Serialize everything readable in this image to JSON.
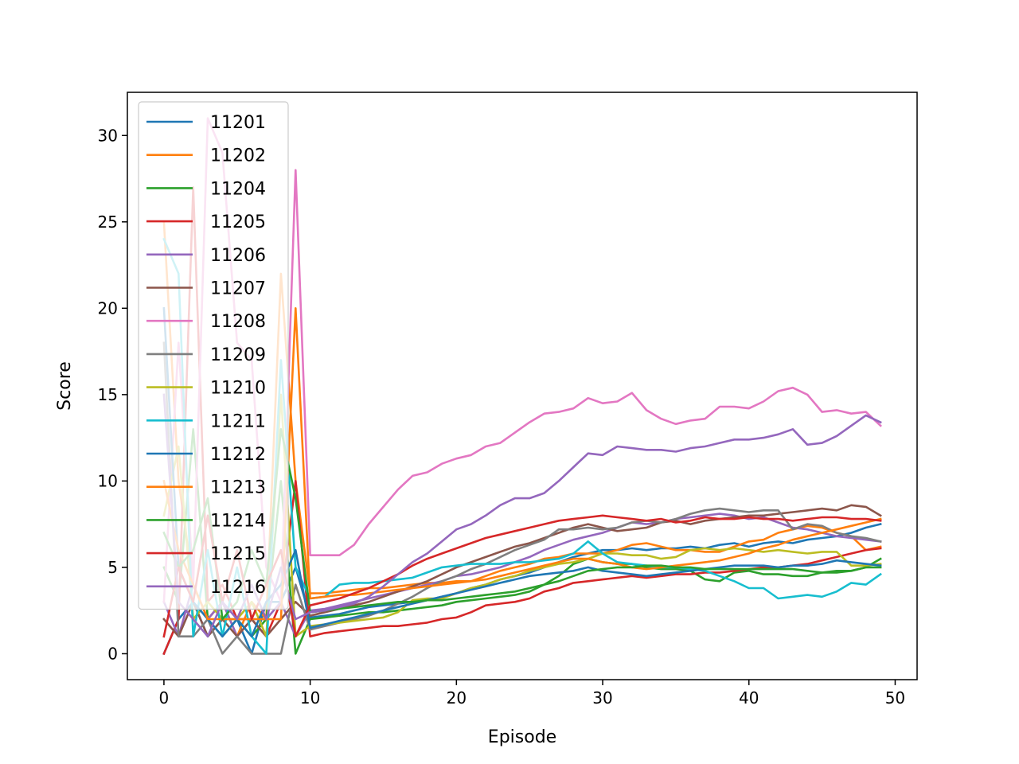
{
  "chart_data": {
    "type": "line",
    "xlabel": "Episode",
    "ylabel": "Score",
    "xlim": [
      -2.5,
      51.5
    ],
    "ylim": [
      -1.5,
      32.5
    ],
    "xticks": [
      0,
      10,
      20,
      30,
      40,
      50
    ],
    "yticks": [
      0,
      5,
      10,
      15,
      20,
      25,
      30
    ],
    "legend_position": "upper-left",
    "series": [
      {
        "name": "11201",
        "color": "#1f77b4",
        "values": [
          0,
          2,
          3,
          1,
          2,
          2,
          0,
          3,
          3,
          5,
          2.1,
          2.2,
          2.3,
          2.5,
          2.7,
          2.8,
          2.9,
          3.0,
          3.1,
          3.3,
          3.5,
          3.8,
          4.0,
          4.3,
          4.5,
          4.7,
          5.0,
          5.3,
          5.6,
          5.8,
          6.0,
          6.0,
          6.1,
          6.0,
          6.1,
          6.1,
          6.2,
          6.1,
          6.3,
          6.4,
          6.2,
          6.4,
          6.5,
          6.4,
          6.6,
          6.7,
          6.8,
          7.0,
          7.3,
          7.5
        ]
      },
      {
        "name": "11202",
        "color": "#ff7f0e",
        "values": [
          25,
          10,
          4,
          2,
          3,
          1,
          3,
          2,
          22,
          10,
          3.5,
          3.5,
          3.6,
          3.7,
          3.8,
          3.8,
          3.9,
          4.0,
          4.1,
          4.1,
          4.2,
          4.2,
          4.5,
          4.8,
          5.0,
          5.2,
          5.5,
          5.6,
          5.8,
          5.8,
          5.8,
          6.0,
          6.3,
          6.4,
          6.2,
          6.0,
          6.0,
          5.9,
          5.9,
          6.2,
          6.5,
          6.6,
          7.0,
          7.2,
          7.4,
          7.3,
          7.0,
          6.8,
          6.0,
          6.2
        ]
      },
      {
        "name": "11204",
        "color": "#2ca02c",
        "values": [
          5,
          3,
          13,
          2,
          1,
          2,
          1,
          2,
          10,
          0,
          2.0,
          2.1,
          2.2,
          2.3,
          2.4,
          2.4,
          2.5,
          2.6,
          2.7,
          2.8,
          3.0,
          3.1,
          3.2,
          3.3,
          3.4,
          3.6,
          4.0,
          4.5,
          5.2,
          5.5,
          5.3,
          5.2,
          5.2,
          5.0,
          4.9,
          4.9,
          4.8,
          4.3,
          4.2,
          4.7,
          4.8,
          4.6,
          4.6,
          4.5,
          4.5,
          4.7,
          4.8,
          4.8,
          5.0,
          5.5
        ]
      },
      {
        "name": "11205",
        "color": "#d62728",
        "values": [
          0,
          2,
          27,
          3,
          4,
          2,
          2,
          1,
          3,
          10,
          1.0,
          1.2,
          1.3,
          1.4,
          1.5,
          1.6,
          1.6,
          1.7,
          1.8,
          2.0,
          2.1,
          2.4,
          2.8,
          2.9,
          3.0,
          3.2,
          3.6,
          3.8,
          4.1,
          4.2,
          4.3,
          4.4,
          4.5,
          4.4,
          4.5,
          4.6,
          4.6,
          4.7,
          4.7,
          4.8,
          4.9,
          5.0,
          5.0,
          5.1,
          5.2,
          5.4,
          5.6,
          5.8,
          6.0,
          6.1
        ]
      },
      {
        "name": "11206",
        "color": "#9467bd",
        "values": [
          3,
          1,
          4,
          2,
          3,
          1,
          2,
          2,
          3,
          1,
          2.5,
          2.6,
          2.8,
          3.0,
          3.2,
          3.4,
          3.6,
          3.8,
          4.0,
          4.2,
          4.5,
          4.6,
          4.8,
          5.0,
          5.3,
          5.6,
          6.0,
          6.3,
          6.6,
          6.8,
          7.0,
          7.3,
          7.6,
          7.5,
          7.6,
          7.8,
          7.9,
          8.0,
          8.1,
          8.0,
          7.8,
          7.9,
          7.6,
          7.3,
          7.2,
          7.0,
          6.8,
          6.7,
          6.6,
          6.5
        ]
      },
      {
        "name": "11207",
        "color": "#8c564b",
        "values": [
          2,
          1,
          3,
          1,
          2,
          1,
          2,
          1,
          2,
          3,
          2.2,
          2.4,
          2.6,
          2.8,
          3.0,
          3.3,
          3.6,
          3.9,
          4.2,
          4.6,
          5.0,
          5.3,
          5.6,
          5.9,
          6.2,
          6.4,
          6.7,
          7.0,
          7.3,
          7.5,
          7.3,
          7.1,
          7.2,
          7.3,
          7.6,
          7.7,
          7.5,
          7.7,
          7.8,
          7.9,
          8.0,
          8.0,
          8.1,
          8.2,
          8.3,
          8.4,
          8.3,
          8.6,
          8.5,
          8.0
        ]
      },
      {
        "name": "11208",
        "color": "#e377c2",
        "values": [
          3,
          18,
          4,
          31,
          29,
          18,
          17,
          5,
          3,
          28,
          5.7,
          5.7,
          5.7,
          6.3,
          7.5,
          8.5,
          9.5,
          10.3,
          10.5,
          11.0,
          11.3,
          11.5,
          12.0,
          12.2,
          12.8,
          13.4,
          13.9,
          14.0,
          14.2,
          14.8,
          14.5,
          14.6,
          15.1,
          14.1,
          13.6,
          13.3,
          13.5,
          13.6,
          14.3,
          14.3,
          14.2,
          14.6,
          15.2,
          15.4,
          15.0,
          14.0,
          14.1,
          13.9,
          14.0,
          13.2
        ]
      },
      {
        "name": "11209",
        "color": "#7f7f7f",
        "values": [
          18,
          1,
          1,
          2,
          0,
          1,
          0,
          0,
          0,
          4,
          1.4,
          1.6,
          1.8,
          2.0,
          2.2,
          2.5,
          2.9,
          3.3,
          3.8,
          4.2,
          4.5,
          4.9,
          5.2,
          5.6,
          6.0,
          6.3,
          6.6,
          7.2,
          7.2,
          7.3,
          7.2,
          7.3,
          7.6,
          7.7,
          7.6,
          7.8,
          8.1,
          8.3,
          8.4,
          8.3,
          8.2,
          8.3,
          8.3,
          7.2,
          7.5,
          7.4,
          7.0,
          6.8,
          6.7,
          6.5
        ]
      },
      {
        "name": "11210",
        "color": "#bcbd22",
        "values": [
          8,
          12,
          2,
          3,
          2,
          2,
          3,
          1,
          15,
          1,
          1.6,
          1.7,
          1.8,
          1.9,
          2.0,
          2.1,
          2.4,
          3.1,
          3.2,
          3.2,
          3.5,
          3.8,
          4.0,
          4.3,
          4.5,
          4.8,
          5.0,
          5.2,
          5.3,
          5.5,
          5.8,
          5.8,
          5.7,
          5.7,
          5.5,
          5.6,
          6.0,
          6.1,
          6.0,
          6.1,
          6.0,
          5.9,
          6.0,
          5.9,
          5.8,
          5.9,
          5.9,
          5.1,
          5.1,
          5.2
        ]
      },
      {
        "name": "11211",
        "color": "#17becf",
        "values": [
          24,
          22,
          1,
          6,
          1,
          5,
          1,
          0,
          17,
          5,
          3.2,
          3.3,
          4.0,
          4.1,
          4.1,
          4.2,
          4.3,
          4.4,
          4.7,
          5.0,
          5.1,
          5.2,
          5.2,
          5.2,
          5.3,
          5.3,
          5.4,
          5.5,
          5.8,
          6.5,
          5.8,
          5.3,
          5.2,
          5.1,
          5.0,
          5.0,
          4.9,
          4.8,
          4.5,
          4.2,
          3.8,
          3.8,
          3.2,
          3.3,
          3.4,
          3.3,
          3.6,
          4.1,
          4.0,
          4.6
        ]
      },
      {
        "name": "11212",
        "color": "#1f77b4",
        "values": [
          20,
          5,
          3,
          2,
          1,
          2,
          1,
          3,
          4,
          6,
          1.5,
          1.7,
          1.9,
          2.1,
          2.3,
          2.5,
          2.7,
          2.9,
          3.1,
          3.3,
          3.5,
          3.7,
          3.9,
          4.1,
          4.3,
          4.5,
          4.6,
          4.7,
          4.8,
          5.0,
          4.8,
          4.7,
          4.6,
          4.5,
          4.6,
          4.7,
          4.8,
          4.9,
          5.0,
          5.1,
          5.1,
          5.1,
          5.0,
          5.1,
          5.1,
          5.2,
          5.4,
          5.3,
          5.2,
          5.1
        ]
      },
      {
        "name": "11213",
        "color": "#ff7f0e",
        "values": [
          10,
          6,
          4,
          2,
          2,
          2,
          2,
          2,
          2,
          20,
          3.2,
          3.3,
          3.4,
          3.4,
          3.5,
          3.6,
          3.7,
          3.8,
          3.9,
          4.0,
          4.1,
          4.2,
          4.3,
          4.5,
          4.7,
          4.9,
          5.1,
          5.3,
          5.5,
          5.5,
          5.3,
          5.2,
          5.0,
          4.9,
          5.0,
          5.1,
          5.2,
          5.3,
          5.4,
          5.6,
          5.8,
          6.1,
          6.3,
          6.6,
          6.8,
          7.0,
          7.2,
          7.4,
          7.6,
          7.8
        ]
      },
      {
        "name": "11214",
        "color": "#2ca02c",
        "values": [
          7,
          5,
          6,
          9,
          2,
          3,
          6,
          4,
          13,
          9,
          2.4,
          2.5,
          2.6,
          2.7,
          2.8,
          2.9,
          3.0,
          3.0,
          3.1,
          3.1,
          3.2,
          3.3,
          3.4,
          3.5,
          3.6,
          3.8,
          4.0,
          4.2,
          4.5,
          4.8,
          4.9,
          5.0,
          5.0,
          5.1,
          5.1,
          5.0,
          5.0,
          4.9,
          4.9,
          4.9,
          4.9,
          4.9,
          4.9,
          4.9,
          4.8,
          4.7,
          4.7,
          4.8,
          5.0,
          5.0
        ]
      },
      {
        "name": "11215",
        "color": "#d62728",
        "values": [
          1,
          5,
          3,
          8,
          3,
          6,
          2,
          4,
          6,
          1,
          2.8,
          3.0,
          3.2,
          3.5,
          3.8,
          4.2,
          4.6,
          5.1,
          5.5,
          5.8,
          6.1,
          6.4,
          6.7,
          6.9,
          7.1,
          7.3,
          7.5,
          7.7,
          7.8,
          7.9,
          8.0,
          7.9,
          7.8,
          7.7,
          7.8,
          7.6,
          7.7,
          7.9,
          7.8,
          7.8,
          7.9,
          7.8,
          7.8,
          7.7,
          7.8,
          7.9,
          7.9,
          7.8,
          7.8,
          7.7
        ]
      },
      {
        "name": "11216",
        "color": "#9467bd",
        "values": [
          15,
          3,
          2,
          1,
          3,
          2,
          4,
          2,
          5,
          2,
          2.4,
          2.5,
          2.7,
          2.9,
          3.3,
          3.9,
          4.6,
          5.3,
          5.8,
          6.5,
          7.2,
          7.5,
          8.0,
          8.6,
          9.0,
          9.0,
          9.3,
          10.0,
          10.8,
          11.6,
          11.5,
          12.0,
          11.9,
          11.8,
          11.8,
          11.7,
          11.9,
          12.0,
          12.2,
          12.4,
          12.4,
          12.5,
          12.7,
          13.0,
          12.1,
          12.2,
          12.6,
          13.2,
          13.8,
          13.4
        ]
      }
    ]
  }
}
